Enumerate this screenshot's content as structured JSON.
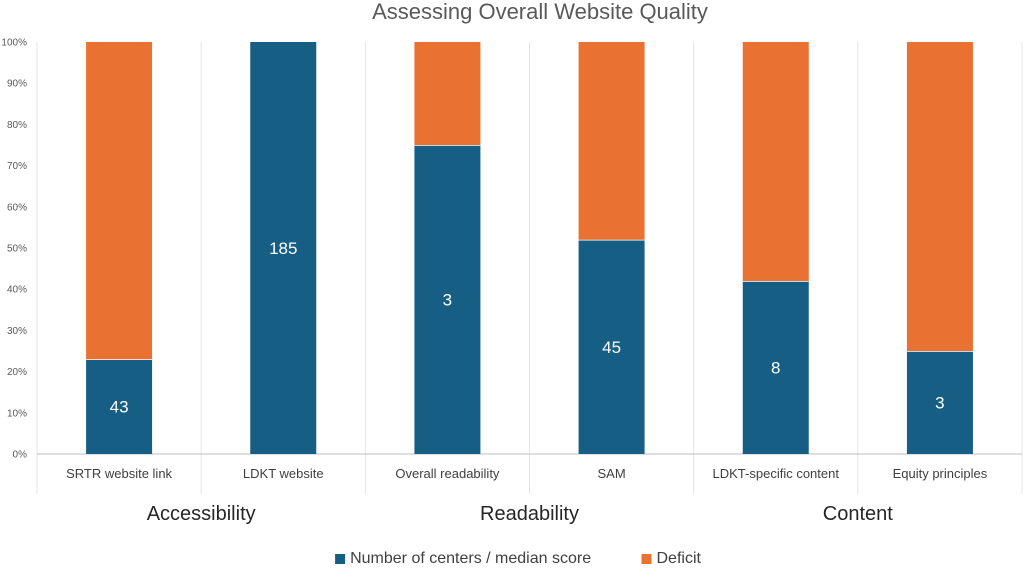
{
  "chart_data": {
    "type": "bar",
    "stacked": true,
    "title": "Assessing Overall Website Quality",
    "xlabel": "",
    "ylabel": "",
    "ylim": [
      0,
      100
    ],
    "y_ticks": [
      "0%",
      "10%",
      "20%",
      "30%",
      "40%",
      "50%",
      "60%",
      "70%",
      "80%",
      "90%",
      "100%"
    ],
    "grid": false,
    "legend_position": "bottom",
    "categories": [
      "SRTR website link",
      "LDKT website",
      "Overall readability",
      "SAM",
      "LDKT-specific content",
      "Equity principles"
    ],
    "groups": [
      {
        "label": "Accessibility",
        "categories": [
          "SRTR website link",
          "LDKT website"
        ]
      },
      {
        "label": "Readability",
        "categories": [
          "Overall readability",
          "SAM"
        ]
      },
      {
        "label": "Content",
        "categories": [
          "LDKT-specific content",
          "Equity principles"
        ]
      }
    ],
    "series": [
      {
        "name": "Number of centers / median score",
        "color": "#165e83",
        "values": [
          23,
          100,
          75,
          52,
          42,
          25
        ],
        "labels": [
          "43",
          "185",
          "3",
          "45",
          "8",
          "3"
        ]
      },
      {
        "name": "Deficit",
        "color": "#e97132",
        "values": [
          77,
          0,
          25,
          48,
          58,
          75
        ]
      }
    ]
  }
}
